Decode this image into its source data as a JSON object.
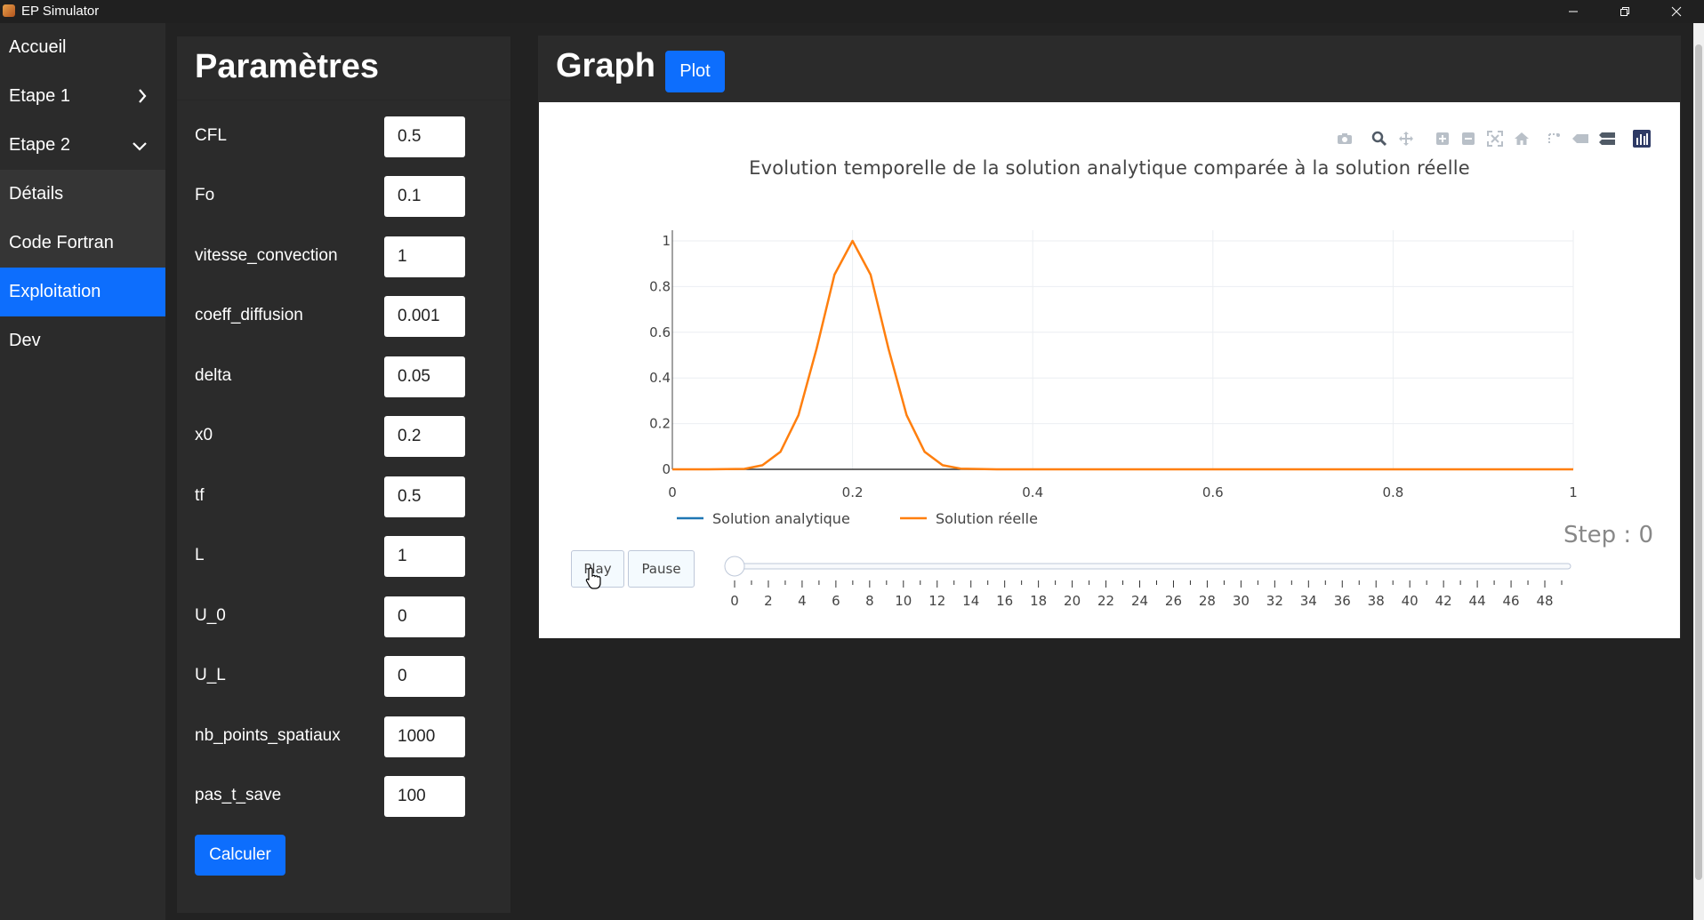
{
  "window": {
    "title": "EP Simulator"
  },
  "sidebar": {
    "items": [
      {
        "label": "Accueil",
        "state": "normal",
        "chevron": ""
      },
      {
        "label": "Etape 1",
        "state": "normal",
        "chevron": "chevron-right-icon"
      },
      {
        "label": "Etape 2",
        "state": "normal",
        "chevron": "chevron-down-icon"
      },
      {
        "label": "Détails",
        "state": "sub",
        "chevron": ""
      },
      {
        "label": "Code Fortran",
        "state": "sub",
        "chevron": ""
      },
      {
        "label": "Exploitation",
        "state": "active",
        "chevron": ""
      },
      {
        "label": "Dev",
        "state": "normal",
        "chevron": ""
      }
    ]
  },
  "params": {
    "title": "Paramètres",
    "fields": [
      {
        "label": "CFL",
        "value": "0.5"
      },
      {
        "label": "Fo",
        "value": "0.1"
      },
      {
        "label": "vitesse_convection",
        "value": "1"
      },
      {
        "label": "coeff_diffusion",
        "value": "0.001"
      },
      {
        "label": "delta",
        "value": "0.05"
      },
      {
        "label": "x0",
        "value": "0.2"
      },
      {
        "label": "tf",
        "value": "0.5"
      },
      {
        "label": "L",
        "value": "1"
      },
      {
        "label": "U_0",
        "value": "0"
      },
      {
        "label": "U_L",
        "value": "0"
      },
      {
        "label": "nb_points_spatiaux",
        "value": "1000"
      },
      {
        "label": "pas_t_save",
        "value": "100"
      }
    ],
    "calculate_label": "Calculer"
  },
  "graph": {
    "title": "Graph",
    "plot_label": "Plot",
    "play_label": "Play",
    "pause_label": "Pause",
    "step_label": "Step : 0",
    "modebar_icons": [
      "camera-icon",
      "zoom-icon",
      "pan-icon",
      "zoom-in-icon",
      "zoom-out-icon",
      "autoscale-icon",
      "reset-axes-icon",
      "spike-lines-icon",
      "hover-closest-icon",
      "hover-compare-icon",
      "plotly-logo-icon"
    ]
  },
  "colors": {
    "accent": "#0d6efd",
    "analytic": "#1f77b4",
    "real": "#ff7f0e"
  },
  "chart_data": {
    "type": "line",
    "title": "Evolution temporelle de la solution analytique comparée à la solution réelle",
    "xlabel": "",
    "ylabel": "",
    "xlim": [
      0,
      1
    ],
    "ylim": [
      0,
      1
    ],
    "x_ticks": [
      "0",
      "0.2",
      "0.4",
      "0.6",
      "0.8",
      "1"
    ],
    "y_ticks": [
      "0",
      "0.2",
      "0.4",
      "0.6",
      "0.8",
      "1"
    ],
    "grid": true,
    "legend_position": "bottom-left",
    "series": [
      {
        "name": "Solution analytique",
        "color": "#1f77b4",
        "x": [
          0,
          0.1,
          0.2,
          0.3,
          0.4,
          0.5,
          0.6,
          0.7,
          0.8,
          0.9,
          1.0
        ],
        "y": [
          0,
          0,
          0,
          0,
          0,
          0,
          0,
          0,
          0,
          0,
          0
        ]
      },
      {
        "name": "Solution réelle",
        "color": "#ff7f0e",
        "x": [
          0,
          0.04,
          0.08,
          0.1,
          0.12,
          0.14,
          0.16,
          0.18,
          0.2,
          0.22,
          0.24,
          0.26,
          0.28,
          0.3,
          0.32,
          0.36,
          0.4,
          0.6,
          0.8,
          1.0
        ],
        "y": [
          0,
          0,
          0.002,
          0.018,
          0.077,
          0.237,
          0.527,
          0.852,
          1.0,
          0.852,
          0.527,
          0.237,
          0.077,
          0.018,
          0.003,
          0,
          0,
          0,
          0,
          0
        ]
      }
    ],
    "slider": {
      "current_step": 0,
      "steps": 50,
      "tick_labels": [
        "0",
        "2",
        "4",
        "6",
        "8",
        "10",
        "12",
        "14",
        "16",
        "18",
        "20",
        "22",
        "24",
        "26",
        "28",
        "30",
        "32",
        "34",
        "36",
        "38",
        "40",
        "42",
        "44",
        "46",
        "48"
      ]
    }
  }
}
